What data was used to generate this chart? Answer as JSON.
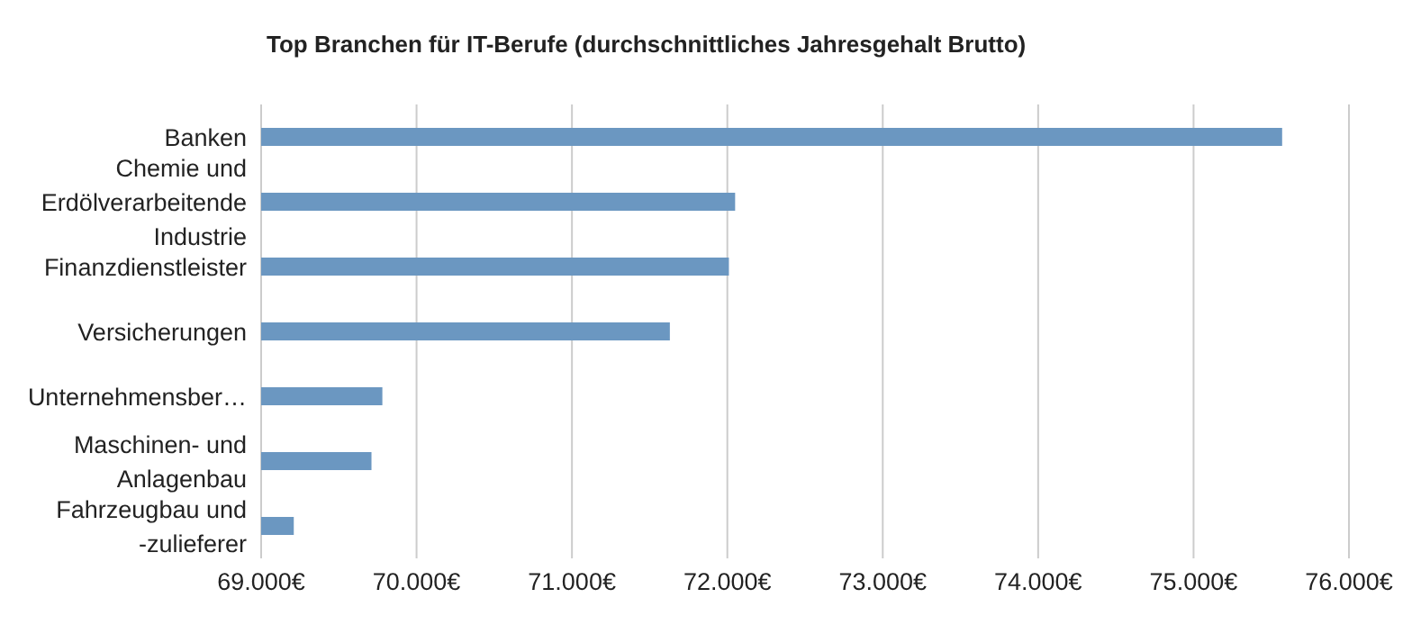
{
  "chart_data": {
    "type": "bar",
    "orientation": "horizontal",
    "title": "Top Branchen für IT-Berufe (durchschnittliches Jahresgehalt Brutto)",
    "categories": [
      "Banken",
      "Chemie und Erdölverarbeitende Industrie",
      "Finanzdienstleister",
      "Versicherungen",
      "Unternehmensber…",
      "Maschinen- und Anlagenbau",
      "Fahrzeugbau und -zulieferer"
    ],
    "values": [
      75570,
      72050,
      72010,
      71630,
      69780,
      69710,
      69210
    ],
    "color": "#6b97c1",
    "xlim": [
      69000,
      76000
    ],
    "xticks": [
      {
        "value": 69000,
        "label": "69.000€"
      },
      {
        "value": 70000,
        "label": "70.000€"
      },
      {
        "value": 71000,
        "label": "71.000€"
      },
      {
        "value": 72000,
        "label": "72.000€"
      },
      {
        "value": 73000,
        "label": "73.000€"
      },
      {
        "value": 74000,
        "label": "74.000€"
      },
      {
        "value": 75000,
        "label": "75.000€"
      },
      {
        "value": 76000,
        "label": "76.000€"
      }
    ],
    "grid": "x"
  }
}
